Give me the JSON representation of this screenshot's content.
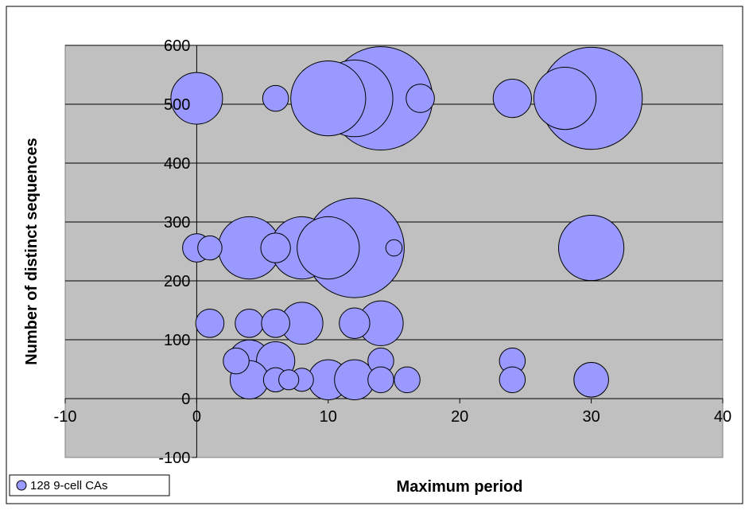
{
  "chart_data": {
    "type": "bubble",
    "title": "",
    "xlabel": "Maximum period",
    "ylabel": "Number of distinct sequences",
    "xlim": [
      -10,
      40
    ],
    "ylim": [
      -100,
      600
    ],
    "x_ticks": [
      -10,
      0,
      10,
      20,
      30,
      40
    ],
    "y_ticks": [
      -100,
      0,
      100,
      200,
      300,
      400,
      500,
      600
    ],
    "x_tick_labels": [
      "-10",
      "0",
      "10",
      "20",
      "30",
      "40"
    ],
    "y_tick_labels": [
      "-100",
      "0",
      "100",
      "200",
      "300",
      "400",
      "500",
      "600"
    ],
    "grid": "horizontal",
    "legend_position": "bottom-left",
    "colors": {
      "bubble_fill": "#9999ff",
      "bubble_stroke": "#000000",
      "plot_bg": "#c0c0c0"
    },
    "series": [
      {
        "name": "128 9-cell CAs",
        "points": [
          {
            "x": 0,
            "y": 510,
            "size": 1
          },
          {
            "x": 6,
            "y": 510,
            "size": 0.25
          },
          {
            "x": 10,
            "y": 510,
            "size": 2.1
          },
          {
            "x": 12,
            "y": 510,
            "size": 2.2
          },
          {
            "x": 14,
            "y": 510,
            "size": 4
          },
          {
            "x": 17,
            "y": 510,
            "size": 0.3
          },
          {
            "x": 24,
            "y": 510,
            "size": 0.55
          },
          {
            "x": 28,
            "y": 510,
            "size": 1.45
          },
          {
            "x": 30,
            "y": 510,
            "size": 3.9
          },
          {
            "x": 0,
            "y": 256,
            "size": 0.3
          },
          {
            "x": 1,
            "y": 256,
            "size": 0.22
          },
          {
            "x": 4,
            "y": 256,
            "size": 1.45
          },
          {
            "x": 6,
            "y": 256,
            "size": 0.33
          },
          {
            "x": 8,
            "y": 256,
            "size": 1.45
          },
          {
            "x": 10,
            "y": 256,
            "size": 1.45
          },
          {
            "x": 12,
            "y": 256,
            "size": 3.7
          },
          {
            "x": 15,
            "y": 256,
            "size": 0.1
          },
          {
            "x": 30,
            "y": 256,
            "size": 1.6
          },
          {
            "x": 1,
            "y": 128,
            "size": 0.3
          },
          {
            "x": 4,
            "y": 128,
            "size": 0.3
          },
          {
            "x": 6,
            "y": 128,
            "size": 0.3
          },
          {
            "x": 8,
            "y": 128,
            "size": 0.66
          },
          {
            "x": 12,
            "y": 128,
            "size": 0.35
          },
          {
            "x": 14,
            "y": 128,
            "size": 0.75
          },
          {
            "x": 3,
            "y": 64,
            "size": 0.25
          },
          {
            "x": 4,
            "y": 64,
            "size": 0.66
          },
          {
            "x": 6,
            "y": 64,
            "size": 0.55
          },
          {
            "x": 14,
            "y": 64,
            "size": 0.25
          },
          {
            "x": 24,
            "y": 64,
            "size": 0.25
          },
          {
            "x": 4,
            "y": 32,
            "size": 0.55
          },
          {
            "x": 6,
            "y": 32,
            "size": 0.22
          },
          {
            "x": 7,
            "y": 32,
            "size": 0.15
          },
          {
            "x": 8,
            "y": 32,
            "size": 0.2
          },
          {
            "x": 10,
            "y": 32,
            "size": 0.6
          },
          {
            "x": 12,
            "y": 32,
            "size": 0.6
          },
          {
            "x": 14,
            "y": 32,
            "size": 0.25
          },
          {
            "x": 16,
            "y": 32,
            "size": 0.25
          },
          {
            "x": 24,
            "y": 32,
            "size": 0.25
          },
          {
            "x": 30,
            "y": 32,
            "size": 0.45
          }
        ]
      }
    ]
  }
}
